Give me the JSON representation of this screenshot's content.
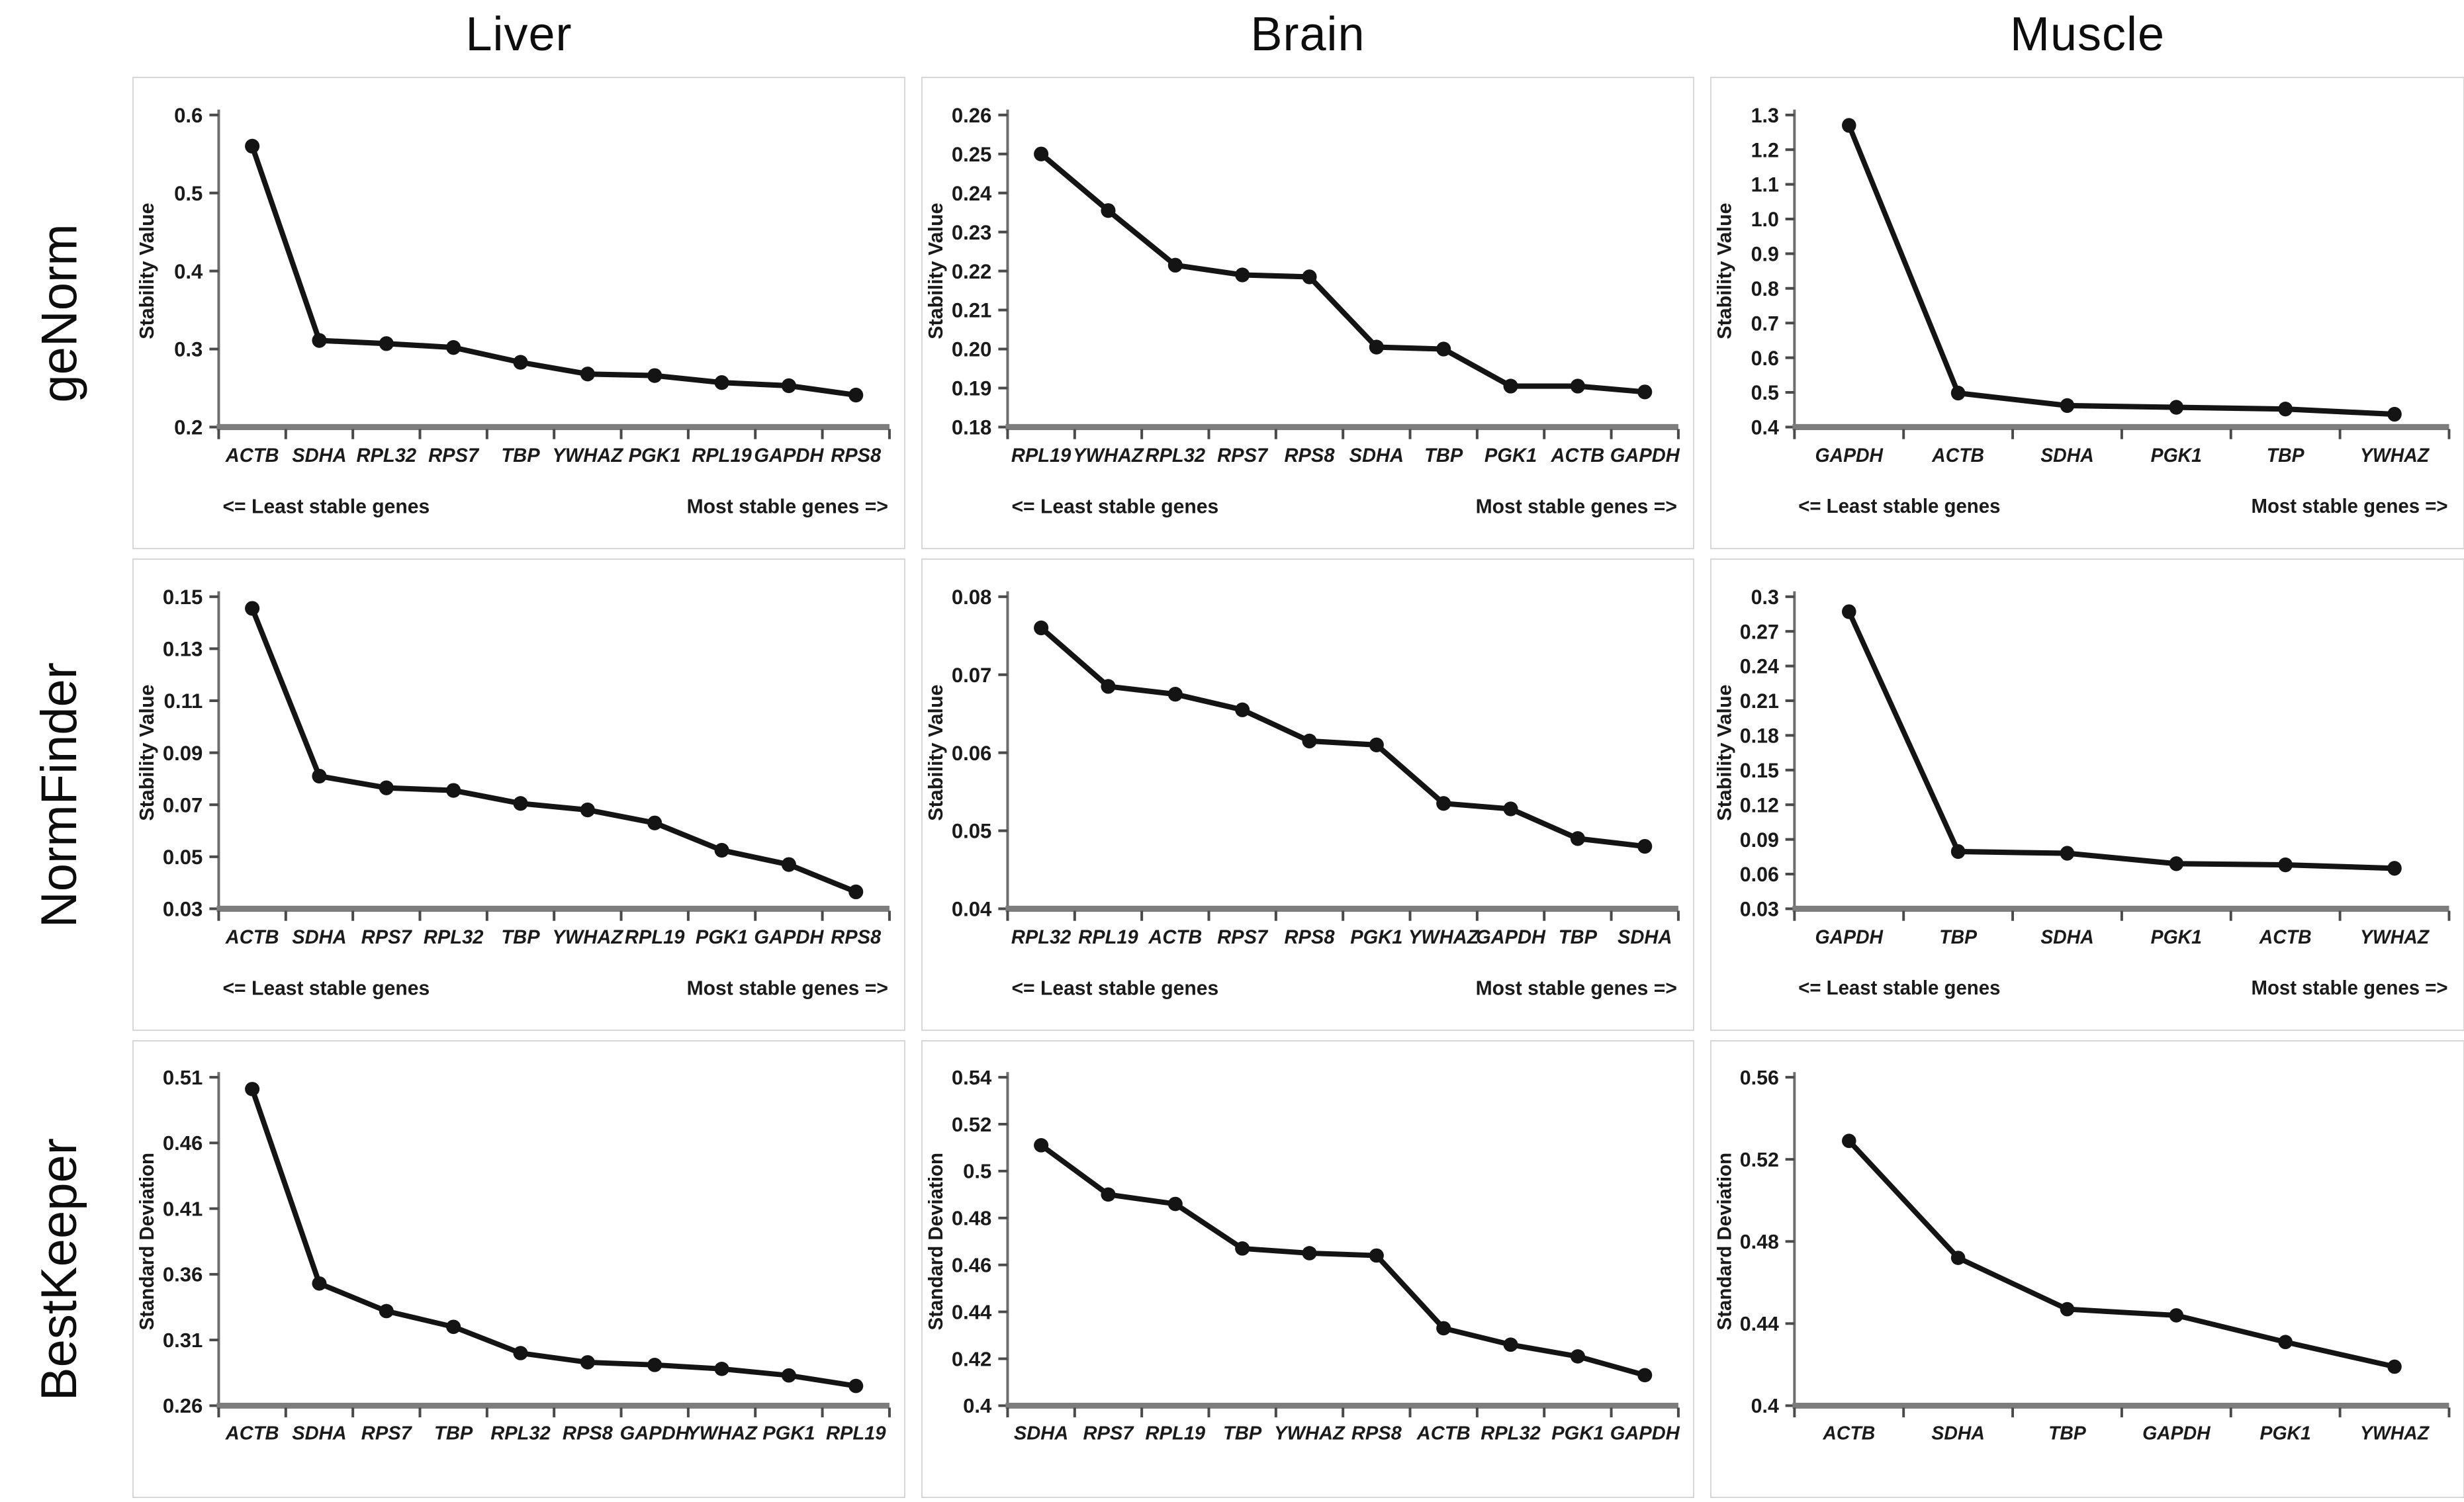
{
  "columns": [
    "Liver",
    "Brain",
    "Muscle"
  ],
  "rows": [
    "geNorm",
    "NormFinder",
    "BestKeeper"
  ],
  "footer_labels": {
    "left": "<= Least stable genes",
    "right": "Most stable genes =>"
  },
  "line_color": "#141414",
  "chart_data": [
    {
      "type": "line",
      "row": "geNorm",
      "column": "Liver",
      "ylabel": "Stability Value",
      "ylim": [
        0.2,
        0.6
      ],
      "yticks": [
        "0.2",
        "0.3",
        "0.4",
        "0.5",
        "0.6"
      ],
      "categories": [
        "ACTB",
        "SDHA",
        "RPL32",
        "RPS7",
        "TBP",
        "YWHAZ",
        "PGK1",
        "RPL19",
        "GAPDH",
        "RPS8"
      ],
      "values": [
        0.56,
        0.311,
        0.307,
        0.302,
        0.283,
        0.268,
        0.266,
        0.257,
        0.253,
        0.241
      ],
      "show_footer": true,
      "legend": "none",
      "grid": "off"
    },
    {
      "type": "line",
      "row": "geNorm",
      "column": "Brain",
      "ylabel": "Stability Value",
      "ylim": [
        0.18,
        0.26
      ],
      "yticks": [
        "0.18",
        "0.19",
        "0.20",
        "0.21",
        "0.22",
        "0.23",
        "0.24",
        "0.25",
        "0.26"
      ],
      "categories": [
        "RPL19",
        "YWHAZ",
        "RPL32",
        "RPS7",
        "RPS8",
        "SDHA",
        "TBP",
        "PGK1",
        "ACTB",
        "GAPDH"
      ],
      "values": [
        0.25,
        0.2355,
        0.2215,
        0.219,
        0.2185,
        0.2005,
        0.2,
        0.1905,
        0.1905,
        0.189
      ],
      "show_footer": true,
      "legend": "none",
      "grid": "off"
    },
    {
      "type": "line",
      "row": "geNorm",
      "column": "Muscle",
      "ylabel": "Stability Value",
      "ylim": [
        0.4,
        1.3
      ],
      "yticks": [
        "0.4",
        "0.5",
        "0.6",
        "0.7",
        "0.8",
        "0.9",
        "1.0",
        "1.1",
        "1.2",
        "1.3"
      ],
      "categories": [
        "GAPDH",
        "ACTB",
        "SDHA",
        "PGK1",
        "TBP",
        "YWHAZ"
      ],
      "values": [
        1.27,
        0.498,
        0.462,
        0.457,
        0.452,
        0.437
      ],
      "show_footer": true,
      "legend": "none",
      "grid": "off"
    },
    {
      "type": "line",
      "row": "NormFinder",
      "column": "Liver",
      "ylabel": "Stability Value",
      "ylim": [
        0.03,
        0.15
      ],
      "yticks": [
        "0.03",
        "0.05",
        "0.07",
        "0.09",
        "0.11",
        "0.13",
        "0.15"
      ],
      "categories": [
        "ACTB",
        "SDHA",
        "RPS7",
        "RPL32",
        "TBP",
        "YWHAZ",
        "RPL19",
        "PGK1",
        "GAPDH",
        "RPS8"
      ],
      "values": [
        0.1455,
        0.081,
        0.0765,
        0.0755,
        0.0705,
        0.068,
        0.063,
        0.0525,
        0.047,
        0.0365
      ],
      "show_footer": true,
      "legend": "none",
      "grid": "off"
    },
    {
      "type": "line",
      "row": "NormFinder",
      "column": "Brain",
      "ylabel": "Stability Value",
      "ylim": [
        0.04,
        0.08
      ],
      "yticks": [
        "0.04",
        "0.05",
        "0.06",
        "0.07",
        "0.08"
      ],
      "categories": [
        "RPL32",
        "RPL19",
        "ACTB",
        "RPS7",
        "RPS8",
        "PGK1",
        "YWHAZ",
        "GAPDH",
        "TBP",
        "SDHA"
      ],
      "values": [
        0.076,
        0.0685,
        0.0675,
        0.0655,
        0.0615,
        0.061,
        0.0535,
        0.0528,
        0.049,
        0.048
      ],
      "show_footer": true,
      "legend": "none",
      "grid": "off"
    },
    {
      "type": "line",
      "row": "NormFinder",
      "column": "Muscle",
      "ylabel": "Stability Value",
      "ylim": [
        0.03,
        0.3
      ],
      "yticks": [
        "0.03",
        "0.06",
        "0.09",
        "0.12",
        "0.15",
        "0.18",
        "0.21",
        "0.24",
        "0.27",
        "0.3"
      ],
      "categories": [
        "GAPDH",
        "TBP",
        "SDHA",
        "PGK1",
        "ACTB",
        "YWHAZ"
      ],
      "values": [
        0.287,
        0.0795,
        0.078,
        0.069,
        0.068,
        0.065
      ],
      "show_footer": true,
      "legend": "none",
      "grid": "off"
    },
    {
      "type": "line",
      "row": "BestKeeper",
      "column": "Liver",
      "ylabel": "Standard Deviation",
      "ylim": [
        0.26,
        0.51
      ],
      "yticks": [
        "0.26",
        "0.31",
        "0.36",
        "0.41",
        "0.46",
        "0.51"
      ],
      "categories": [
        "ACTB",
        "SDHA",
        "RPS7",
        "TBP",
        "RPL32",
        "RPS8",
        "GAPDH",
        "YWHAZ",
        "PGK1",
        "RPL19"
      ],
      "values": [
        0.501,
        0.353,
        0.332,
        0.32,
        0.3,
        0.293,
        0.291,
        0.288,
        0.283,
        0.275
      ],
      "show_footer": false,
      "legend": "none",
      "grid": "off"
    },
    {
      "type": "line",
      "row": "BestKeeper",
      "column": "Brain",
      "ylabel": "Standard Deviation",
      "ylim": [
        0.4,
        0.54
      ],
      "yticks": [
        "0.4",
        "0.42",
        "0.44",
        "0.46",
        "0.48",
        "0.5",
        "0.52",
        "0.54"
      ],
      "categories": [
        "SDHA",
        "RPS7",
        "RPL19",
        "TBP",
        "YWHAZ",
        "RPS8",
        "ACTB",
        "RPL32",
        "PGK1",
        "GAPDH"
      ],
      "values": [
        0.511,
        0.49,
        0.486,
        0.467,
        0.465,
        0.464,
        0.433,
        0.426,
        0.421,
        0.413
      ],
      "show_footer": false,
      "legend": "none",
      "grid": "off"
    },
    {
      "type": "line",
      "row": "BestKeeper",
      "column": "Muscle",
      "ylabel": "Standard Deviation",
      "ylim": [
        0.4,
        0.56
      ],
      "yticks": [
        "0.4",
        "0.44",
        "0.48",
        "0.52",
        "0.56"
      ],
      "categories": [
        "ACTB",
        "SDHA",
        "TBP",
        "GAPDH",
        "PGK1",
        "YWHAZ"
      ],
      "values": [
        0.529,
        0.472,
        0.447,
        0.444,
        0.431,
        0.419
      ],
      "show_footer": false,
      "legend": "none",
      "grid": "off"
    }
  ]
}
